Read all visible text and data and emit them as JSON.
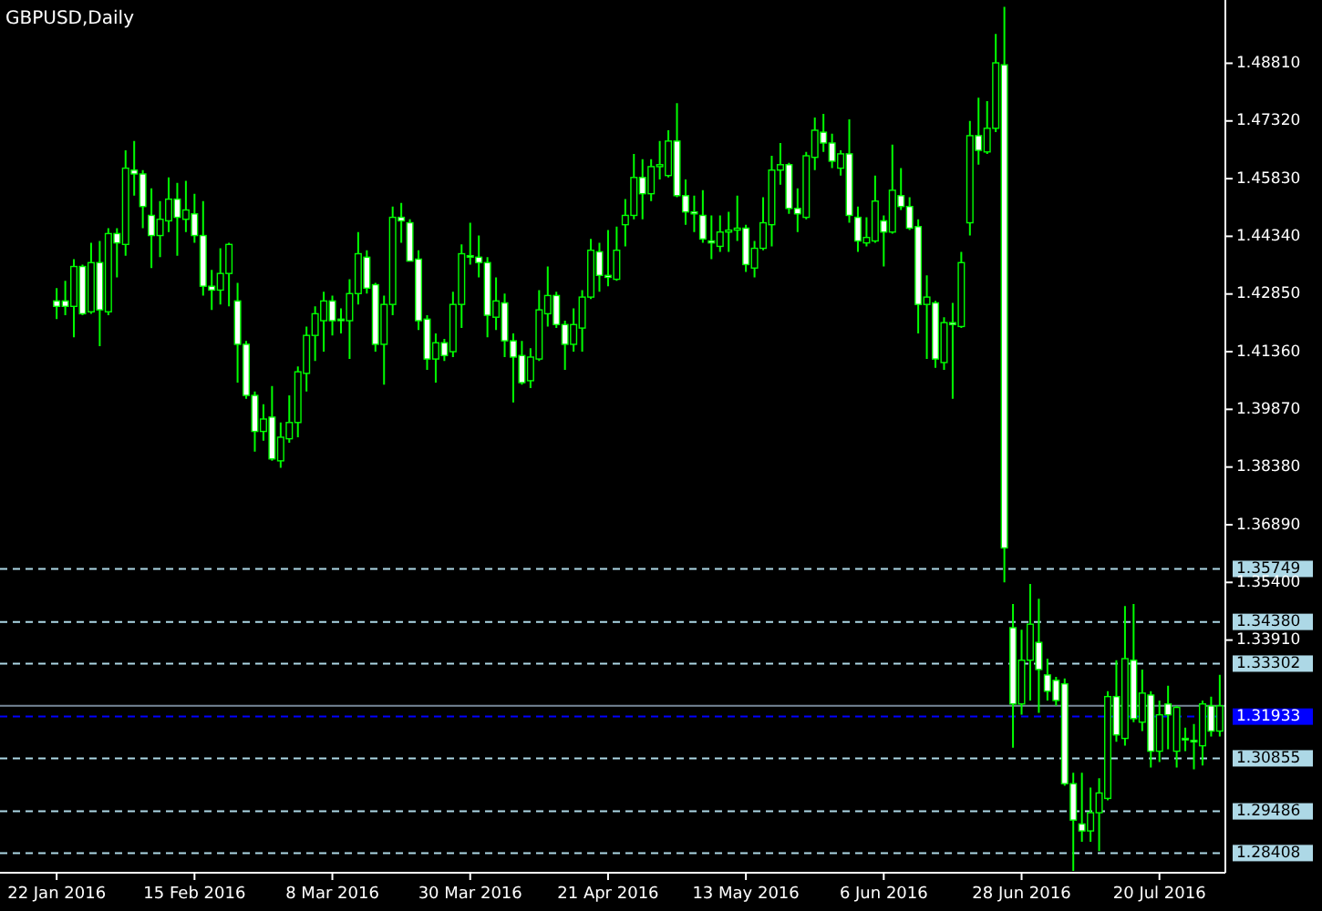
{
  "chart_data": {
    "type": "candlestick",
    "title": "GBPUSD,Daily",
    "color": "#00ff00",
    "categories": [
      "22 Jan 2016",
      null,
      null,
      null,
      null,
      null,
      null,
      null,
      null,
      null,
      null,
      null,
      null,
      null,
      null,
      null,
      "15 Feb 2016",
      null,
      null,
      null,
      null,
      null,
      null,
      null,
      null,
      null,
      null,
      null,
      null,
      null,
      null,
      null,
      "8 Mar 2016",
      null,
      null,
      null,
      null,
      null,
      null,
      null,
      null,
      null,
      null,
      null,
      null,
      null,
      null,
      null,
      "30 Mar 2016",
      null,
      null,
      null,
      null,
      null,
      null,
      null,
      null,
      null,
      null,
      null,
      null,
      null,
      null,
      null,
      "21 Apr 2016",
      null,
      null,
      null,
      null,
      null,
      null,
      null,
      null,
      null,
      null,
      null,
      null,
      null,
      null,
      null,
      "13 May 2016",
      null,
      null,
      null,
      null,
      null,
      null,
      null,
      null,
      null,
      null,
      null,
      null,
      null,
      null,
      null,
      "6 Jun 2016",
      null,
      null,
      null,
      null,
      null,
      null,
      null,
      null,
      null,
      null,
      null,
      null,
      null,
      null,
      null,
      "28 Jun 2016",
      null,
      null,
      null,
      null,
      null,
      null,
      null,
      null,
      null,
      null,
      null,
      null,
      null,
      null,
      null,
      "20 Jul 2016",
      null,
      null,
      null,
      null,
      null,
      null,
      null
    ],
    "ohlc": [
      [
        1.4267,
        1.43,
        1.422,
        1.4253
      ],
      [
        1.4267,
        1.4319,
        1.423,
        1.4253
      ],
      [
        1.4253,
        1.4375,
        1.4173,
        1.4356
      ],
      [
        1.4356,
        1.4361,
        1.423,
        1.4234
      ],
      [
        1.4239,
        1.4417,
        1.4234,
        1.4366
      ],
      [
        1.4366,
        1.4422,
        1.415,
        1.4244
      ],
      [
        1.4239,
        1.4455,
        1.423,
        1.4441
      ],
      [
        1.4441,
        1.4455,
        1.4328,
        1.4417
      ],
      [
        1.4413,
        1.4656,
        1.4384,
        1.461
      ],
      [
        1.4605,
        1.468,
        1.4539,
        1.4595
      ],
      [
        1.4595,
        1.4605,
        1.4455,
        1.4511
      ],
      [
        1.4488,
        1.4558,
        1.4352,
        1.4436
      ],
      [
        1.4436,
        1.4525,
        1.438,
        1.4478
      ],
      [
        1.4474,
        1.4586,
        1.4445,
        1.453
      ],
      [
        1.453,
        1.4572,
        1.4384,
        1.4483
      ],
      [
        1.4478,
        1.4577,
        1.4445,
        1.4502
      ],
      [
        1.4492,
        1.4544,
        1.4417,
        1.4436
      ],
      [
        1.4436,
        1.4525,
        1.4281,
        1.4305
      ],
      [
        1.4305,
        1.4347,
        1.4244,
        1.4295
      ],
      [
        1.4295,
        1.4403,
        1.4258,
        1.4338
      ],
      [
        1.4338,
        1.4417,
        1.4253,
        1.4413
      ],
      [
        1.4267,
        1.4314,
        1.4056,
        1.4155
      ],
      [
        1.4155,
        1.4164,
        1.4014,
        1.4023
      ],
      [
        1.4023,
        1.4033,
        1.3878,
        1.393
      ],
      [
        1.393,
        1.4,
        1.3906,
        1.3962
      ],
      [
        1.3967,
        1.4047,
        1.3854,
        1.3859
      ],
      [
        1.3854,
        1.3953,
        1.3836,
        1.3915
      ],
      [
        1.3911,
        1.4023,
        1.3901,
        1.3953
      ],
      [
        1.3953,
        1.4098,
        1.3915,
        1.4084
      ],
      [
        1.408,
        1.4201,
        1.4033,
        1.4178
      ],
      [
        1.4178,
        1.4253,
        1.4112,
        1.4234
      ],
      [
        1.4216,
        1.4291,
        1.4136,
        1.4267
      ],
      [
        1.4267,
        1.4281,
        1.4178,
        1.4216
      ],
      [
        1.422,
        1.4248,
        1.4183,
        1.422
      ],
      [
        1.4216,
        1.4323,
        1.4117,
        1.4286
      ],
      [
        1.4286,
        1.4445,
        1.4258,
        1.4389
      ],
      [
        1.438,
        1.4398,
        1.4286,
        1.43
      ],
      [
        1.4309,
        1.4314,
        1.4136,
        1.4155
      ],
      [
        1.4155,
        1.4281,
        1.4051,
        1.4258
      ],
      [
        1.4258,
        1.4511,
        1.423,
        1.4483
      ],
      [
        1.4483,
        1.452,
        1.4417,
        1.4474
      ],
      [
        1.4469,
        1.4478,
        1.437,
        1.437
      ],
      [
        1.4375,
        1.4398,
        1.4192,
        1.4216
      ],
      [
        1.422,
        1.423,
        1.4089,
        1.4117
      ],
      [
        1.4117,
        1.4183,
        1.4056,
        1.4159
      ],
      [
        1.4159,
        1.4169,
        1.4112,
        1.4126
      ],
      [
        1.4136,
        1.4291,
        1.4122,
        1.4258
      ],
      [
        1.4258,
        1.4413,
        1.4197,
        1.4389
      ],
      [
        1.4384,
        1.4469,
        1.4361,
        1.4384
      ],
      [
        1.438,
        1.4436,
        1.4328,
        1.4366
      ],
      [
        1.4366,
        1.438,
        1.4173,
        1.423
      ],
      [
        1.4225,
        1.4328,
        1.4192,
        1.4267
      ],
      [
        1.4262,
        1.4286,
        1.4122,
        1.4164
      ],
      [
        1.4164,
        1.4183,
        1.4005,
        1.4122
      ],
      [
        1.4126,
        1.4164,
        1.4051,
        1.4056
      ],
      [
        1.4061,
        1.4145,
        1.4042,
        1.4122
      ],
      [
        1.4117,
        1.4295,
        1.4112,
        1.4244
      ],
      [
        1.4234,
        1.4356,
        1.4201,
        1.4281
      ],
      [
        1.4281,
        1.4291,
        1.4197,
        1.4206
      ],
      [
        1.4206,
        1.4216,
        1.4089,
        1.4155
      ],
      [
        1.4155,
        1.4248,
        1.4136,
        1.4206
      ],
      [
        1.4197,
        1.4295,
        1.4136,
        1.4277
      ],
      [
        1.4277,
        1.4427,
        1.4272,
        1.4398
      ],
      [
        1.4394,
        1.4417,
        1.4291,
        1.4333
      ],
      [
        1.4333,
        1.445,
        1.4305,
        1.4328
      ],
      [
        1.4323,
        1.4459,
        1.4319,
        1.4398
      ],
      [
        1.4464,
        1.453,
        1.4408,
        1.4488
      ],
      [
        1.4488,
        1.4647,
        1.4478,
        1.4586
      ],
      [
        1.4586,
        1.4633,
        1.4478,
        1.4544
      ],
      [
        1.4544,
        1.4633,
        1.4525,
        1.4614
      ],
      [
        1.4614,
        1.468,
        1.4581,
        1.4619
      ],
      [
        1.4591,
        1.4708,
        1.4586,
        1.468
      ],
      [
        1.468,
        1.4778,
        1.4535,
        1.4539
      ],
      [
        1.4539,
        1.4581,
        1.4464,
        1.4497
      ],
      [
        1.4497,
        1.4539,
        1.4445,
        1.4492
      ],
      [
        1.4488,
        1.4553,
        1.4417,
        1.4427
      ],
      [
        1.4422,
        1.4488,
        1.4375,
        1.4417
      ],
      [
        1.4408,
        1.4488,
        1.4394,
        1.4445
      ],
      [
        1.4445,
        1.4497,
        1.4394,
        1.445
      ],
      [
        1.445,
        1.4539,
        1.4422,
        1.4455
      ],
      [
        1.4455,
        1.4464,
        1.4342,
        1.4361
      ],
      [
        1.4352,
        1.4422,
        1.4328,
        1.4403
      ],
      [
        1.4403,
        1.4535,
        1.4398,
        1.4469
      ],
      [
        1.4464,
        1.4642,
        1.4408,
        1.4605
      ],
      [
        1.4605,
        1.4675,
        1.4567,
        1.4619
      ],
      [
        1.4619,
        1.4624,
        1.4492,
        1.4506
      ],
      [
        1.4506,
        1.4558,
        1.4445,
        1.4492
      ],
      [
        1.4483,
        1.4652,
        1.4478,
        1.4642
      ],
      [
        1.4638,
        1.4741,
        1.4605,
        1.4708
      ],
      [
        1.4703,
        1.475,
        1.4652,
        1.4675
      ],
      [
        1.4675,
        1.4699,
        1.461,
        1.4628
      ],
      [
        1.461,
        1.4656,
        1.4591,
        1.4647
      ],
      [
        1.4647,
        1.4736,
        1.4469,
        1.4488
      ],
      [
        1.4483,
        1.4511,
        1.4394,
        1.4422
      ],
      [
        1.4417,
        1.4483,
        1.4408,
        1.4431
      ],
      [
        1.4422,
        1.4591,
        1.4417,
        1.4525
      ],
      [
        1.4474,
        1.4488,
        1.4356,
        1.4445
      ],
      [
        1.4445,
        1.4671,
        1.4441,
        1.4553
      ],
      [
        1.4539,
        1.461,
        1.4502,
        1.4511
      ],
      [
        1.4511,
        1.4535,
        1.445,
        1.4455
      ],
      [
        1.4459,
        1.4478,
        1.4183,
        1.4258
      ],
      [
        1.4258,
        1.4333,
        1.4117,
        1.4277
      ],
      [
        1.4262,
        1.4267,
        1.4094,
        1.4117
      ],
      [
        1.4108,
        1.4225,
        1.4089,
        1.4211
      ],
      [
        1.4211,
        1.4262,
        1.4014,
        1.4206
      ],
      [
        1.4201,
        1.4394,
        1.4197,
        1.4366
      ],
      [
        1.4469,
        1.4732,
        1.4436,
        1.4694
      ],
      [
        1.4694,
        1.4792,
        1.4619,
        1.4656
      ],
      [
        1.4652,
        1.4783,
        1.4647,
        1.4713
      ],
      [
        1.4713,
        1.4957,
        1.4703,
        1.4882
      ],
      [
        1.4877,
        1.5027,
        1.354,
        1.3629
      ],
      [
        1.3423,
        1.3484,
        1.3113,
        1.3226
      ],
      [
        1.3226,
        1.3418,
        1.3198,
        1.3339
      ],
      [
        1.3339,
        1.3536,
        1.3235,
        1.3432
      ],
      [
        1.3385,
        1.3498,
        1.3203,
        1.3315
      ],
      [
        1.3301,
        1.3343,
        1.3235,
        1.3259
      ],
      [
        1.3287,
        1.3296,
        1.3221,
        1.3235
      ],
      [
        1.3278,
        1.3292,
        1.3015,
        1.302
      ],
      [
        1.302,
        1.3048,
        1.2795,
        1.2926
      ],
      [
        1.2916,
        1.3048,
        1.287,
        1.2898
      ],
      [
        1.2898,
        1.301,
        1.287,
        1.2945
      ],
      [
        1.2945,
        1.3034,
        1.2846,
        1.2996
      ],
      [
        1.2982,
        1.3259,
        1.2977,
        1.3245
      ],
      [
        1.3245,
        1.3339,
        1.3128,
        1.3146
      ],
      [
        1.3137,
        1.3479,
        1.3118,
        1.3343
      ],
      [
        1.3339,
        1.3484,
        1.3179,
        1.3188
      ],
      [
        1.3179,
        1.3315,
        1.3156,
        1.3254
      ],
      [
        1.3249,
        1.3259,
        1.3062,
        1.3104
      ],
      [
        1.3104,
        1.3235,
        1.3076,
        1.3198
      ],
      [
        1.3226,
        1.3273,
        1.3109,
        1.3198
      ],
      [
        1.3104,
        1.3221,
        1.3062,
        1.3217
      ],
      [
        1.3137,
        1.3165,
        1.3104,
        1.3137
      ],
      [
        1.3132,
        1.3174,
        1.3057,
        1.3128
      ],
      [
        1.3118,
        1.3235,
        1.3067,
        1.3226
      ],
      [
        1.3221,
        1.3245,
        1.3142,
        1.3156
      ],
      [
        1.3156,
        1.3301,
        1.3142,
        1.3221
      ]
    ],
    "ylim": [
      1.279,
      1.5035
    ],
    "yticks": [
      {
        "value": 1.4881,
        "label": "1.48810"
      },
      {
        "value": 1.4732,
        "label": "1.47320"
      },
      {
        "value": 1.4583,
        "label": "1.45830"
      },
      {
        "value": 1.4434,
        "label": "1.44340"
      },
      {
        "value": 1.4285,
        "label": "1.42850"
      },
      {
        "value": 1.4136,
        "label": "1.41360"
      },
      {
        "value": 1.3987,
        "label": "1.39870"
      },
      {
        "value": 1.3838,
        "label": "1.38380"
      },
      {
        "value": 1.3689,
        "label": "1.36890"
      },
      {
        "value": 1.354,
        "label": "1.35400"
      },
      {
        "value": 1.3391,
        "label": "1.33910"
      }
    ],
    "ref_lines": [
      {
        "axis": "y",
        "value": 1.35749,
        "label": "1.35749",
        "color": "#add8e6",
        "line_style": "dashed"
      },
      {
        "axis": "y",
        "value": 1.3438,
        "label": "1.34380",
        "color": "#add8e6",
        "line_style": "dashed"
      },
      {
        "axis": "y",
        "value": 1.33302,
        "label": "1.33302",
        "color": "#add8e6",
        "line_style": "dashed"
      },
      {
        "axis": "y",
        "value": 1.3221,
        "label": null,
        "color": "#778899",
        "line_style": "solid"
      },
      {
        "axis": "y",
        "value": 1.31933,
        "label": "1.31933",
        "color": "#0000ff",
        "line_style": "dashed"
      },
      {
        "axis": "y",
        "value": 1.30855,
        "label": "1.30855",
        "color": "#add8e6",
        "line_style": "dashed"
      },
      {
        "axis": "y",
        "value": 1.29486,
        "label": "1.29486",
        "color": "#add8e6",
        "line_style": "dashed"
      },
      {
        "axis": "y",
        "value": 1.28408,
        "label": "1.28408",
        "color": "#add8e6",
        "line_style": "dashed"
      }
    ],
    "grid": false
  }
}
